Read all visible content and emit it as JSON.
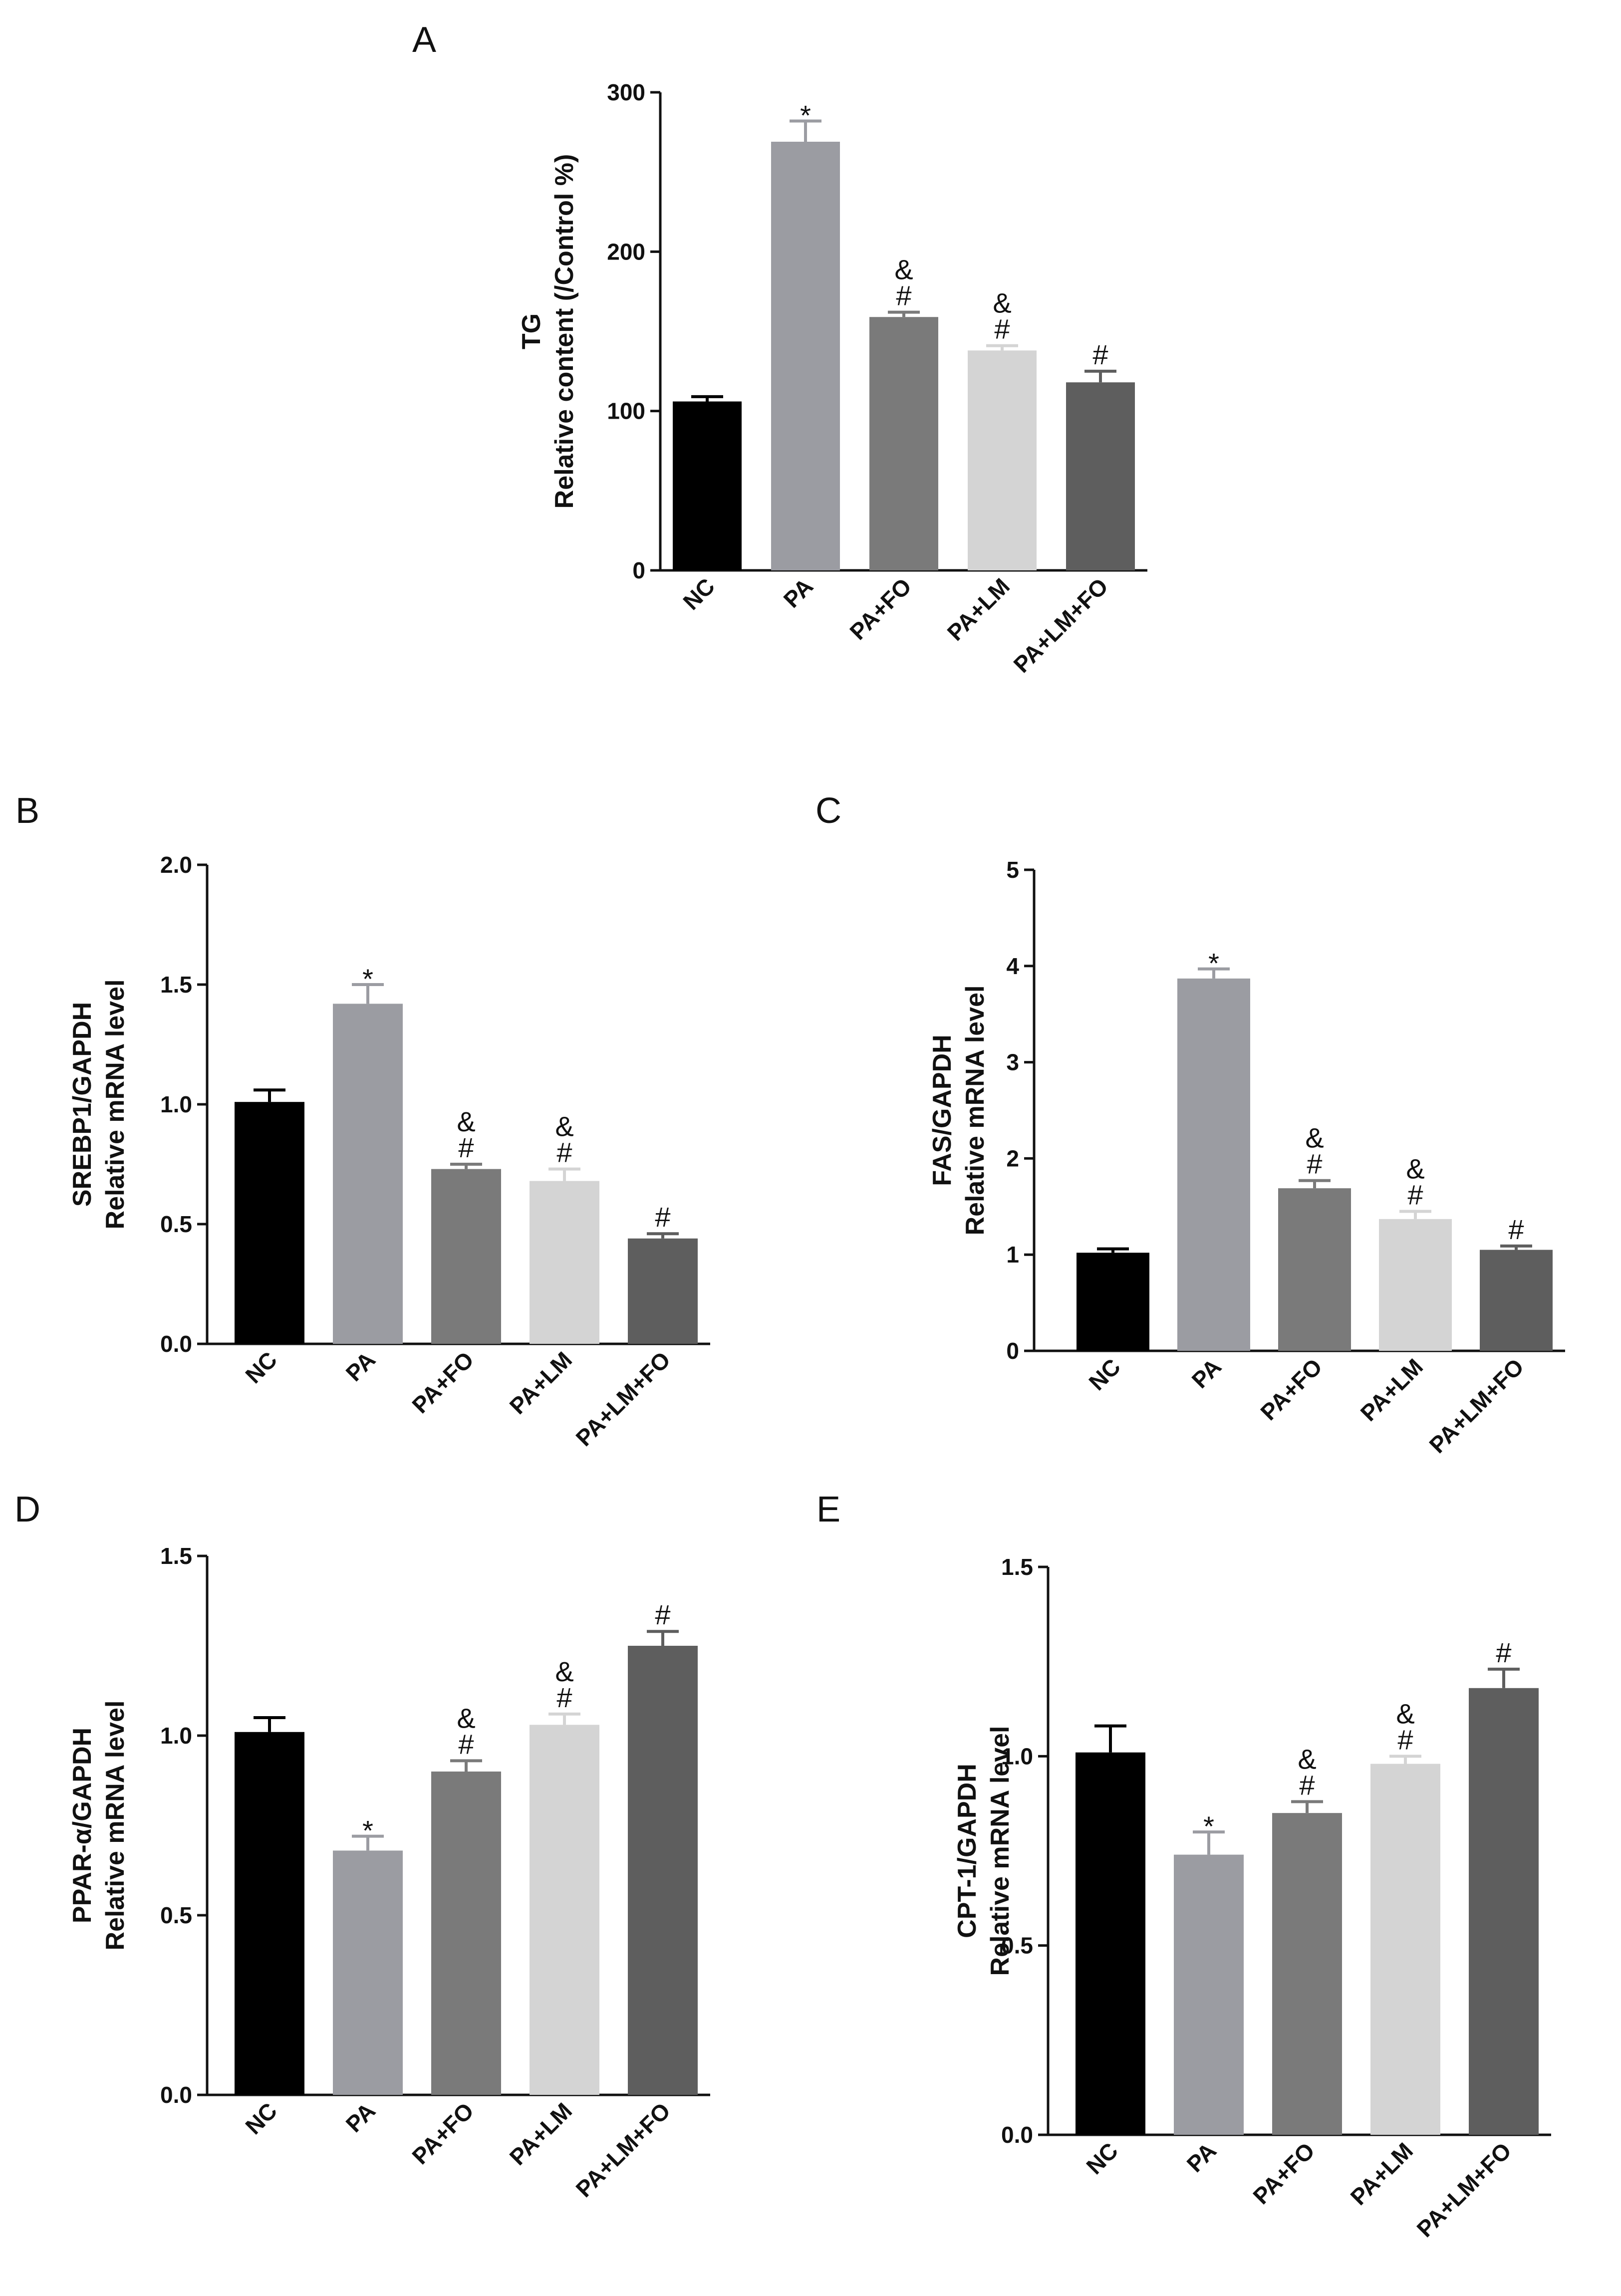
{
  "chart_data": [
    {
      "panel": "A",
      "type": "bar",
      "ylabel_line1": "TG",
      "ylabel_line2": "Relative content (/Control %)",
      "categories": [
        "NC",
        "PA",
        "PA+FO",
        "PA+LM",
        "PA+LM+FO"
      ],
      "values": [
        106,
        269,
        159,
        138,
        118
      ],
      "errors": [
        3,
        13,
        3,
        3,
        7
      ],
      "annotations": [
        "",
        "*",
        "&\n#",
        "&\n#",
        "#"
      ],
      "ylim": [
        0,
        300
      ],
      "yticks": [
        "0",
        "100",
        "200",
        "300"
      ],
      "bar_colors": [
        "#000000",
        "#9b9ca2",
        "#7a7a7a",
        "#d4d4d4",
        "#5e5e5e"
      ]
    },
    {
      "panel": "B",
      "type": "bar",
      "ylabel_line1": "SREBP1/GAPDH",
      "ylabel_line2": "Relative mRNA level",
      "categories": [
        "NC",
        "PA",
        "PA+FO",
        "PA+LM",
        "PA+LM+FO"
      ],
      "values": [
        1.01,
        1.42,
        0.73,
        0.68,
        0.44
      ],
      "errors": [
        0.05,
        0.08,
        0.02,
        0.05,
        0.02
      ],
      "annotations": [
        "",
        "*",
        "&\n#",
        "&\n#",
        "#"
      ],
      "ylim": [
        0,
        2.0
      ],
      "yticks": [
        "0.0",
        "0.5",
        "1.0",
        "1.5",
        "2.0"
      ],
      "bar_colors": [
        "#000000",
        "#9b9ca2",
        "#7a7a7a",
        "#d4d4d4",
        "#5e5e5e"
      ]
    },
    {
      "panel": "C",
      "type": "bar",
      "ylabel_line1": "FAS/GAPDH",
      "ylabel_line2": "Relative mRNA level",
      "categories": [
        "NC",
        "PA",
        "PA+FO",
        "PA+LM",
        "PA+LM+FO"
      ],
      "values": [
        1.02,
        3.87,
        1.69,
        1.37,
        1.05
      ],
      "errors": [
        0.04,
        0.1,
        0.08,
        0.08,
        0.04
      ],
      "annotations": [
        "",
        "*",
        "&\n#",
        "&\n#",
        "#"
      ],
      "ylim": [
        0,
        5
      ],
      "yticks": [
        "0",
        "1",
        "2",
        "3",
        "4",
        "5"
      ],
      "bar_colors": [
        "#000000",
        "#9b9ca2",
        "#7a7a7a",
        "#d4d4d4",
        "#5e5e5e"
      ]
    },
    {
      "panel": "D",
      "type": "bar",
      "ylabel_line1": "PPAR-α/GAPDH",
      "ylabel_line2": "Relative mRNA level",
      "categories": [
        "NC",
        "PA",
        "PA+FO",
        "PA+LM",
        "PA+LM+FO"
      ],
      "values": [
        1.01,
        0.68,
        0.9,
        1.03,
        1.25
      ],
      "errors": [
        0.04,
        0.04,
        0.03,
        0.03,
        0.04
      ],
      "annotations": [
        "",
        "*",
        "&\n#",
        "&\n#",
        "#"
      ],
      "ylim": [
        0,
        1.5
      ],
      "yticks": [
        "0.0",
        "0.5",
        "1.0",
        "1.5"
      ],
      "bar_colors": [
        "#000000",
        "#9b9ca2",
        "#7a7a7a",
        "#d4d4d4",
        "#5e5e5e"
      ]
    },
    {
      "panel": "E",
      "type": "bar",
      "ylabel_line1": "CPT-1/GAPDH",
      "ylabel_line2": "Relative mRNA level",
      "categories": [
        "NC",
        "PA",
        "PA+FO",
        "PA+LM",
        "PA+LM+FO"
      ],
      "values": [
        1.01,
        0.74,
        0.85,
        0.98,
        1.18
      ],
      "errors": [
        0.07,
        0.06,
        0.03,
        0.02,
        0.05
      ],
      "annotations": [
        "",
        "*",
        "&\n#",
        "&\n#",
        "#"
      ],
      "ylim": [
        0,
        1.5
      ],
      "yticks": [
        "0.0",
        "0.5",
        "1.0",
        "1.5"
      ],
      "bar_colors": [
        "#000000",
        "#9b9ca2",
        "#7a7a7a",
        "#d4d4d4",
        "#5e5e5e"
      ]
    }
  ]
}
